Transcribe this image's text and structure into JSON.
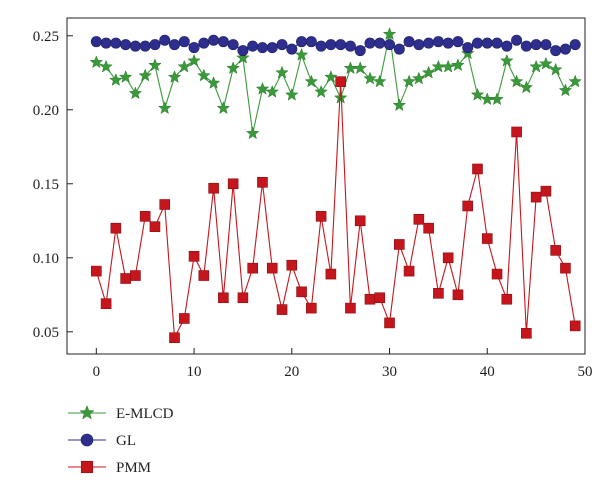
{
  "chart_data": {
    "type": "line",
    "title": "",
    "xlabel": "",
    "ylabel": "",
    "xlim": [
      -3,
      50
    ],
    "ylim": [
      0.035,
      0.262
    ],
    "x_ticks": [
      0,
      10,
      20,
      30,
      40,
      50
    ],
    "y_ticks": [
      0.05,
      0.1,
      0.15,
      0.2,
      0.25
    ],
    "x_tick_labels": [
      "0",
      "10",
      "20",
      "30",
      "40",
      "50"
    ],
    "y_tick_labels": [
      "0.05",
      "0.10",
      "0.15",
      "0.20",
      "0.25"
    ],
    "grid": false,
    "legend_position": "bottom-left",
    "x": [
      0,
      1,
      2,
      3,
      4,
      5,
      6,
      7,
      8,
      9,
      10,
      11,
      12,
      13,
      14,
      15,
      16,
      17,
      18,
      19,
      20,
      21,
      22,
      23,
      24,
      25,
      26,
      27,
      28,
      29,
      30,
      31,
      32,
      33,
      34,
      35,
      36,
      37,
      38,
      39,
      40,
      41,
      42,
      43,
      44,
      45,
      46,
      47,
      48,
      49
    ],
    "series": [
      {
        "name": "E-MLCD",
        "color": "#3a9a3a",
        "marker": "star",
        "values": [
          0.232,
          0.229,
          0.22,
          0.222,
          0.211,
          0.223,
          0.23,
          0.201,
          0.222,
          0.229,
          0.233,
          0.223,
          0.218,
          0.201,
          0.228,
          0.235,
          0.184,
          0.214,
          0.212,
          0.225,
          0.21,
          0.237,
          0.219,
          0.212,
          0.222,
          0.208,
          0.228,
          0.228,
          0.221,
          0.219,
          0.251,
          0.203,
          0.219,
          0.221,
          0.225,
          0.229,
          0.229,
          0.23,
          0.238,
          0.21,
          0.207,
          0.207,
          0.233,
          0.219,
          0.215,
          0.229,
          0.231,
          0.227,
          0.213,
          0.219
        ]
      },
      {
        "name": "GL",
        "color": "#2e2e8f",
        "marker": "circle",
        "values": [
          0.246,
          0.245,
          0.245,
          0.244,
          0.243,
          0.243,
          0.244,
          0.247,
          0.244,
          0.246,
          0.242,
          0.245,
          0.247,
          0.246,
          0.244,
          0.24,
          0.243,
          0.242,
          0.242,
          0.244,
          0.241,
          0.246,
          0.246,
          0.243,
          0.244,
          0.244,
          0.243,
          0.24,
          0.245,
          0.245,
          0.244,
          0.241,
          0.246,
          0.244,
          0.245,
          0.246,
          0.245,
          0.246,
          0.242,
          0.245,
          0.245,
          0.245,
          0.243,
          0.247,
          0.243,
          0.244,
          0.244,
          0.24,
          0.241,
          0.244
        ]
      },
      {
        "name": "PMM",
        "color": "#c4161c",
        "marker": "square",
        "values": [
          0.091,
          0.069,
          0.12,
          0.086,
          0.088,
          0.128,
          0.121,
          0.136,
          0.046,
          0.059,
          0.101,
          0.088,
          0.147,
          0.073,
          0.15,
          0.073,
          0.093,
          0.151,
          0.093,
          0.065,
          0.095,
          0.077,
          0.066,
          0.128,
          0.089,
          0.219,
          0.066,
          0.125,
          0.072,
          0.073,
          0.056,
          0.109,
          0.091,
          0.126,
          0.12,
          0.076,
          0.1,
          0.075,
          0.135,
          0.16,
          0.113,
          0.089,
          0.072,
          0.185,
          0.049,
          0.141,
          0.145,
          0.105,
          0.093,
          0.054
        ]
      }
    ]
  }
}
